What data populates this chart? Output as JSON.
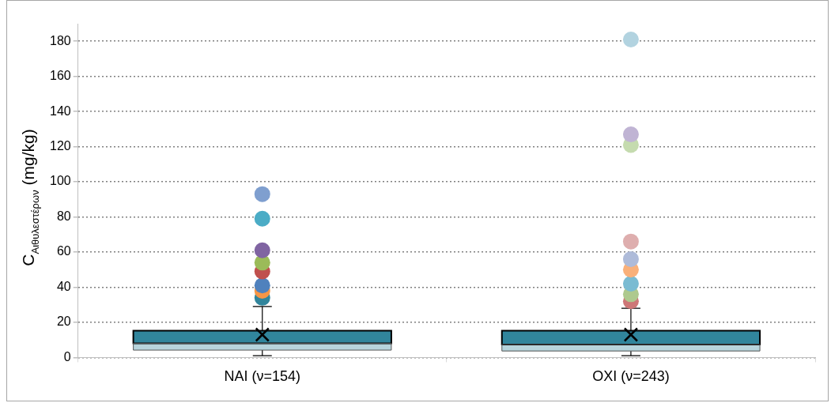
{
  "chart_data": {
    "type": "box",
    "ylabel": "C$_{Αιθυλεστέρων}$ (mg/kg)",
    "categories": [
      "NAI (ν=154)",
      "OXI (ν=243)"
    ],
    "ylim": [
      0,
      190
    ],
    "yticks": [
      0,
      20,
      40,
      60,
      80,
      100,
      120,
      140,
      160,
      180
    ],
    "grid": "y",
    "legend": false,
    "marker": "circle",
    "series": [
      {
        "color": "#31859c",
        "boxes": [
          {
            "low": 1,
            "q1": 4.2,
            "median": 8.1,
            "q3": 15.3,
            "high": 29,
            "mean": 13
          },
          {
            "low": 1,
            "q1": 3.7,
            "median": 7.4,
            "q3": 15.3,
            "high": 28,
            "mean": 13
          }
        ]
      },
      {
        "type": "scatter",
        "x": [
          "NAI (ν=154)",
          "NAI (ν=154)",
          "NAI (ν=154)",
          "NAI (ν=154)",
          "NAI (ν=154)",
          "NAI (ν=154)",
          "NAI (ν=154)",
          "NAI (ν=154)"
        ],
        "values": [
          93,
          79,
          61,
          54,
          49,
          41,
          38,
          34
        ],
        "colors": [
          "#7f9fcf",
          "#4bacc6",
          "#8064a2",
          "#9bbb59",
          "#c0504d",
          "#4f81bd",
          "#f79646",
          "#31859c"
        ]
      },
      {
        "type": "scatter",
        "x": [
          "OXI (ν=243)",
          "OXI (ν=243)",
          "OXI (ν=243)",
          "OXI (ν=243)",
          "OXI (ν=243)",
          "OXI (ν=243)",
          "OXI (ν=243)",
          "OXI (ν=243)",
          "OXI (ν=243)"
        ],
        "values": [
          181,
          127,
          121,
          66,
          56,
          50,
          42,
          36,
          32
        ],
        "colors": [
          "#b2d3e0",
          "#c0b4d4",
          "#c5dbaf",
          "#deaeae",
          "#aebbd9",
          "#f9b07a",
          "#7abbd2",
          "#aec98e",
          "#cd7777"
        ]
      }
    ]
  }
}
